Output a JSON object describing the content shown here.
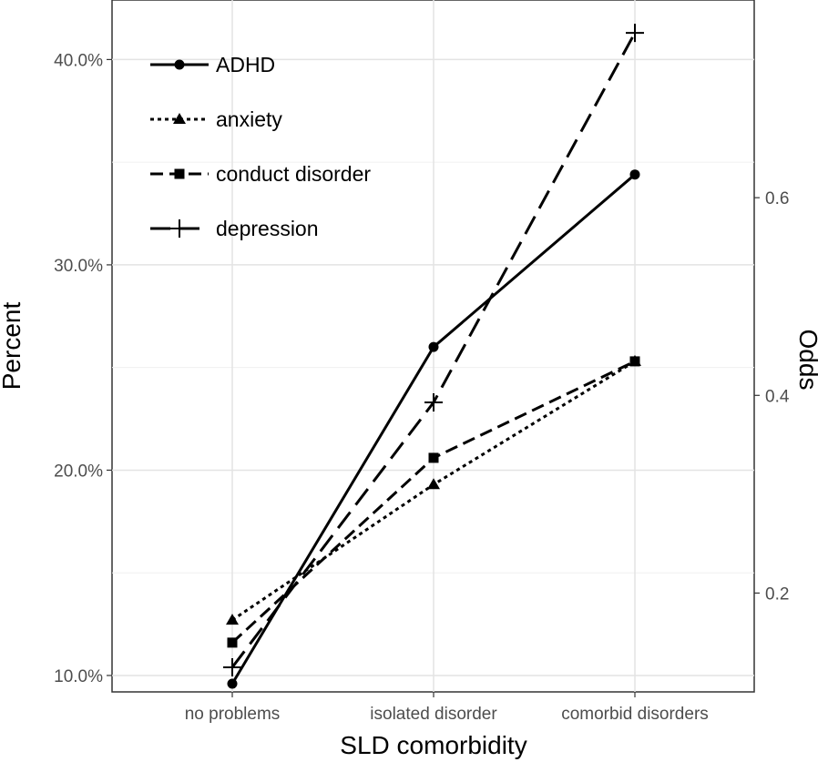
{
  "chart_data": {
    "type": "line",
    "xlabel": "SLD comorbidity",
    "ylabel": "Percent",
    "y2label": "Odds",
    "categories": [
      "no problems",
      "isolated disorder",
      "comorbid disorders"
    ],
    "ylim": [
      9.2,
      42.9
    ],
    "yticks": [
      10,
      20,
      30,
      40
    ],
    "ytick_labels": [
      "10.0%",
      "20.0%",
      "30.0%",
      "40.0%"
    ],
    "y2lim": [
      0.1,
      0.8
    ],
    "y2ticks": [
      0.2,
      0.4,
      0.6
    ],
    "y2tick_labels": [
      "0.2",
      "0.4",
      "0.6"
    ],
    "grid": true,
    "legend_position": "top-left",
    "series": [
      {
        "name": "ADHD",
        "values": [
          9.6,
          26.0,
          34.4
        ],
        "line": "solid",
        "marker": "circle"
      },
      {
        "name": "anxiety",
        "values": [
          12.7,
          19.3,
          25.3
        ],
        "line": "dotted",
        "marker": "triangle"
      },
      {
        "name": "conduct disorder",
        "values": [
          11.6,
          20.6,
          25.3
        ],
        "line": "dashed",
        "marker": "square"
      },
      {
        "name": "depression",
        "values": [
          10.4,
          23.3,
          41.3
        ],
        "line": "longdash",
        "marker": "cross"
      }
    ]
  }
}
